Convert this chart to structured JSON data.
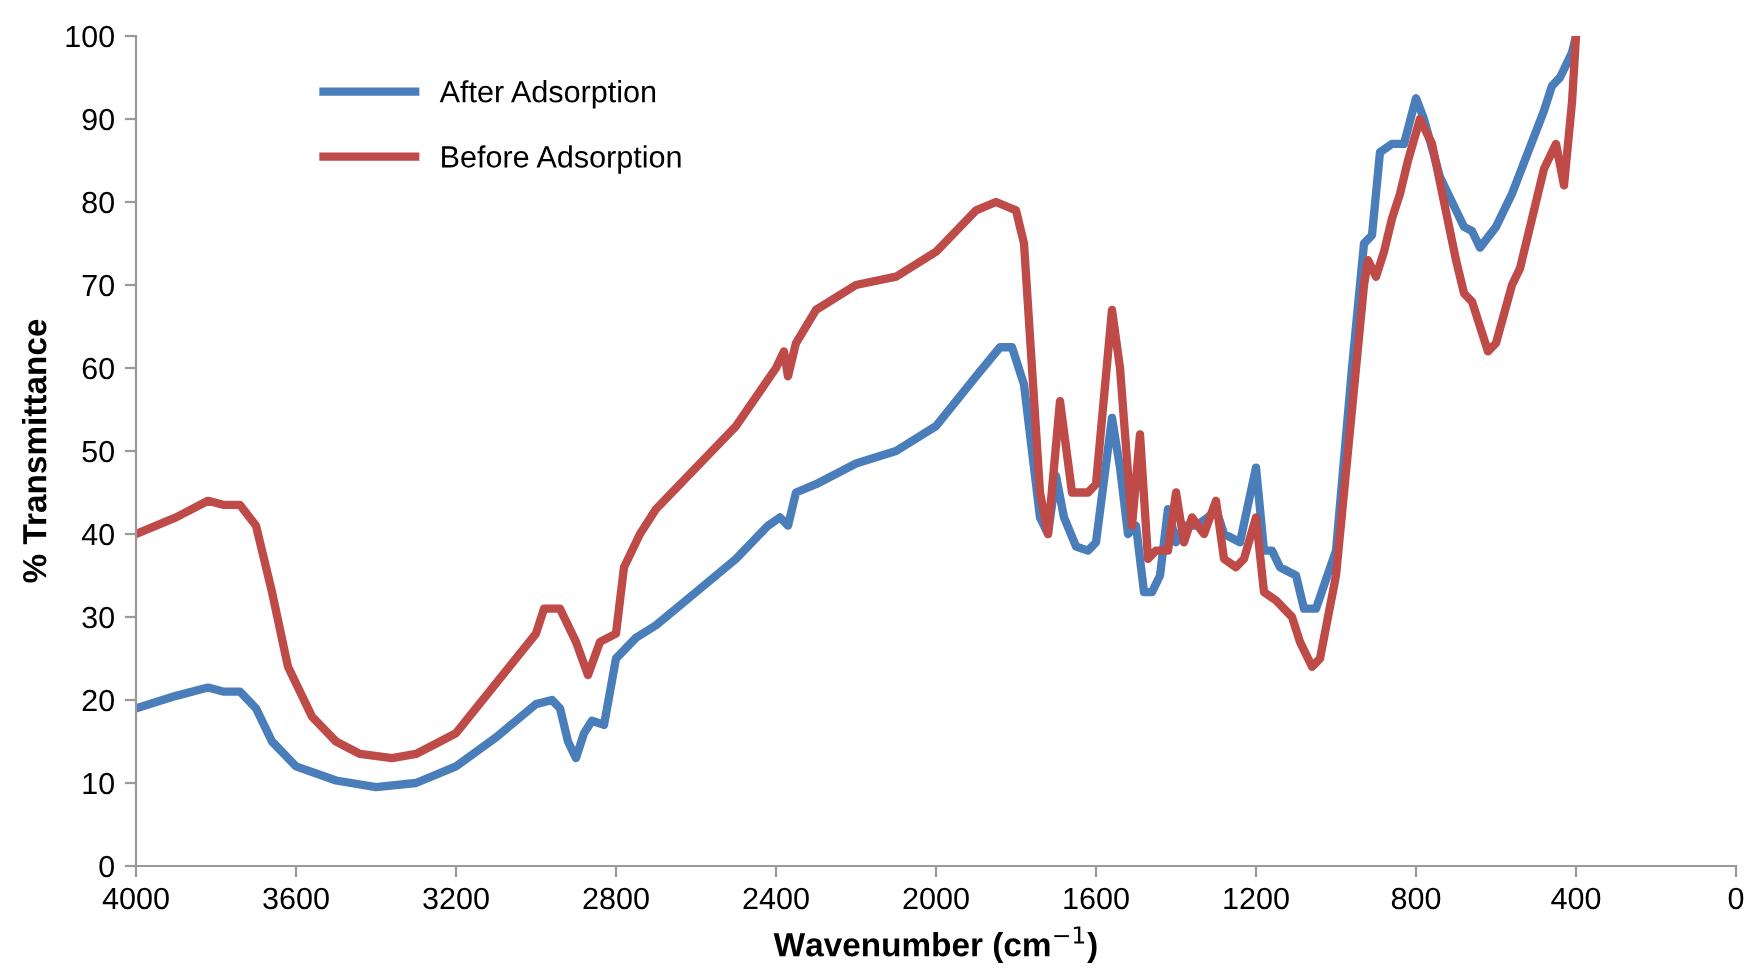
{
  "chart_data": {
    "type": "line",
    "xlabel": "Wavenumber (cm$^{−1}$)",
    "ylabel": "% Transmittance",
    "xlim": [
      4000,
      0
    ],
    "xticks": [
      4000,
      3600,
      3200,
      2800,
      2400,
      2000,
      1600,
      1200,
      800,
      400,
      0
    ],
    "ylim": [
      0,
      100
    ],
    "yticks": [
      0,
      10,
      20,
      30,
      40,
      50,
      60,
      70,
      80,
      90,
      100
    ],
    "grid": false,
    "legend": "top left",
    "marker": "none",
    "line_style": "solid",
    "series": [
      {
        "name": "After Adsorption",
        "color": "#4a7ebb",
        "x": [
          4000,
          3900,
          3820,
          3780,
          3740,
          3700,
          3660,
          3600,
          3500,
          3400,
          3300,
          3200,
          3100,
          3000,
          2960,
          2940,
          2920,
          2900,
          2880,
          2860,
          2830,
          2800,
          2750,
          2700,
          2600,
          2500,
          2420,
          2390,
          2370,
          2350,
          2300,
          2200,
          2100,
          2000,
          1900,
          1840,
          1810,
          1780,
          1760,
          1740,
          1720,
          1700,
          1680,
          1650,
          1620,
          1600,
          1560,
          1540,
          1520,
          1500,
          1480,
          1460,
          1440,
          1420,
          1400,
          1380,
          1350,
          1320,
          1300,
          1280,
          1240,
          1200,
          1180,
          1160,
          1140,
          1100,
          1080,
          1050,
          1000,
          960,
          930,
          910,
          890,
          860,
          830,
          800,
          780,
          740,
          700,
          680,
          660,
          640,
          600,
          560,
          520,
          480,
          460,
          440,
          410,
          400
        ],
        "values": [
          19,
          20.5,
          21.5,
          21,
          21,
          19,
          15,
          12,
          10.3,
          9.5,
          10,
          12,
          15.5,
          19.5,
          20,
          19,
          15,
          13,
          16,
          17.5,
          17,
          25,
          27.5,
          29,
          33,
          37,
          41,
          42,
          41,
          45,
          46,
          48.5,
          50,
          53,
          59,
          62.5,
          62.5,
          58,
          50,
          42,
          40,
          47,
          42,
          38.5,
          38,
          39,
          54,
          48,
          40,
          41,
          33,
          33,
          35,
          43,
          39,
          41,
          41,
          42,
          43,
          40,
          39,
          48,
          38,
          38,
          36,
          35,
          31,
          31,
          38,
          60,
          75,
          76,
          86,
          87,
          87,
          92.5,
          90,
          83,
          79,
          77,
          76.5,
          74.5,
          77,
          81,
          86,
          91,
          94,
          95,
          98,
          100
        ]
      },
      {
        "name": "Before Adsorption",
        "color": "#be4b48",
        "x": [
          4000,
          3900,
          3820,
          3780,
          3740,
          3700,
          3660,
          3620,
          3560,
          3500,
          3440,
          3360,
          3300,
          3200,
          3100,
          3000,
          2980,
          2940,
          2900,
          2870,
          2840,
          2800,
          2780,
          2740,
          2700,
          2600,
          2500,
          2400,
          2380,
          2370,
          2350,
          2300,
          2200,
          2100,
          2000,
          1900,
          1850,
          1800,
          1780,
          1760,
          1740,
          1720,
          1690,
          1660,
          1620,
          1600,
          1560,
          1540,
          1510,
          1490,
          1470,
          1450,
          1420,
          1400,
          1380,
          1360,
          1330,
          1300,
          1280,
          1250,
          1230,
          1200,
          1180,
          1150,
          1110,
          1090,
          1060,
          1040,
          1000,
          960,
          930,
          920,
          900,
          880,
          860,
          840,
          820,
          790,
          760,
          730,
          700,
          680,
          660,
          620,
          600,
          560,
          540,
          500,
          480,
          450,
          430,
          410,
          400
        ],
        "values": [
          40,
          42,
          44,
          43.5,
          43.5,
          41,
          33,
          24,
          18,
          15,
          13.5,
          13,
          13.5,
          16,
          22,
          28,
          31,
          31,
          27,
          23,
          27,
          28,
          36,
          40,
          43,
          48,
          53,
          60,
          62,
          59,
          63,
          67,
          70,
          71,
          74,
          79,
          80,
          79,
          75,
          60,
          45,
          40,
          56,
          45,
          45,
          46,
          67,
          60,
          41,
          52,
          37,
          38,
          38,
          45,
          39,
          42,
          40,
          44,
          37,
          36,
          37,
          42,
          33,
          32,
          30,
          27,
          24,
          25,
          35,
          55,
          70,
          73,
          71,
          74,
          78,
          81,
          85,
          90,
          87,
          80,
          73,
          69,
          68,
          62,
          63,
          70,
          72,
          80,
          84,
          87,
          82,
          92,
          100
        ]
      }
    ]
  }
}
